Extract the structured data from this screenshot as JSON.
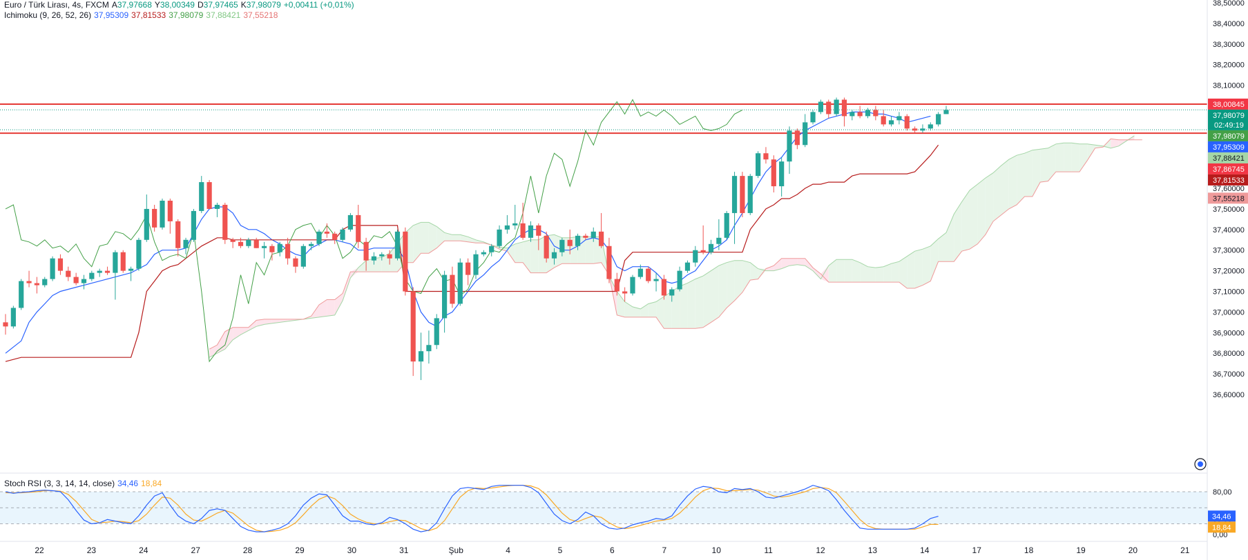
{
  "header": {
    "symbol": "Euro / Türk Lirası, 4s, FXCM",
    "ohlc": [
      {
        "k": "A",
        "v": "37,97668"
      },
      {
        "k": "Y",
        "v": "38,00349"
      },
      {
        "k": "D",
        "v": "37,97465"
      },
      {
        "k": "K",
        "v": "37,98079"
      }
    ],
    "change": "+0,00411 (+0,01%)",
    "ichimoku": {
      "label": "Ichimoku (9, 26, 52, 26)",
      "values": [
        {
          "v": "37,95309",
          "color": "#2962ff"
        },
        {
          "v": "37,81533",
          "color": "#b71c1c"
        },
        {
          "v": "37,98079",
          "color": "#43a047"
        },
        {
          "v": "37,88421",
          "color": "#a5d6a7"
        },
        {
          "v": "37,55218",
          "color": "#ef9a9a"
        }
      ]
    }
  },
  "stoch": {
    "label": "Stoch RSI (3, 3, 14, 14, close)",
    "k_value": "34,46",
    "d_value": "18,84"
  },
  "colors": {
    "up": "#26a69a",
    "down": "#ef5350",
    "tenkan": "#2962ff",
    "kijun": "#b71c1c",
    "chikou": "#43a047",
    "senkouA": "#a5d6a7",
    "senkouB": "#ef9a9a",
    "kumoBull": "#e8f5e9",
    "kumoBear": "#fde4ec",
    "hline": "#e53935",
    "stochK": "#2962ff",
    "stochD": "#f9a825"
  },
  "price_axis": {
    "ticks": [
      "38,50000",
      "38,40000",
      "38,30000",
      "38,20000",
      "38,10000",
      "38,00000",
      "37,90000",
      "37,80000",
      "37,70000",
      "37,60000",
      "37,50000",
      "37,40000",
      "37,30000",
      "37,20000",
      "37,10000",
      "37,00000",
      "36,90000",
      "36,80000",
      "36,70000",
      "36,60000"
    ],
    "labels": [
      {
        "value": 38.00845,
        "text": "38,00845",
        "bg": "#f23645",
        "fg": "#ffffff"
      },
      {
        "value": 37.98079,
        "text": "37,98079",
        "bg": "#089981",
        "fg": "#ffffff",
        "sub": "02:49:19"
      },
      {
        "value": 37.98079,
        "text": "37,98079",
        "bg": "#43a047",
        "fg": "#ffffff",
        "offset": 1
      },
      {
        "value": 37.95309,
        "text": "37,95309",
        "bg": "#2962ff",
        "fg": "#ffffff"
      },
      {
        "value": 37.88421,
        "text": "37,88421",
        "bg": "#a5d6a7",
        "fg": "#131722"
      },
      {
        "value": 37.86745,
        "text": "37,86745",
        "bg": "#f23645",
        "fg": "#ffffff"
      },
      {
        "value": 37.81533,
        "text": "37,81533",
        "bg": "#b71c1c",
        "fg": "#ffffff"
      },
      {
        "value": 37.55218,
        "text": "37,55218",
        "bg": "#ef9a9a",
        "fg": "#131722"
      }
    ]
  },
  "stoch_axis": {
    "ticks": [
      "80,00",
      "20,00",
      "0,00"
    ],
    "labels": [
      {
        "value": 34.46,
        "text": "34,46",
        "bg": "#2962ff",
        "fg": "#ffffff"
      },
      {
        "value": 18.84,
        "text": "18,84",
        "bg": "#f9a825",
        "fg": "#ffffff"
      }
    ]
  },
  "time_axis": [
    "22",
    "23",
    "24",
    "27",
    "28",
    "29",
    "30",
    "31",
    "Şub",
    "4",
    "5",
    "6",
    "7",
    "10",
    "11",
    "12",
    "13",
    "14",
    "17",
    "18",
    "19",
    "20",
    "21"
  ],
  "chart_data": {
    "type": "candlestick",
    "title": "Euro / Türk Lirası, 4s, FXCM",
    "ylim": [
      36.53,
      38.5
    ],
    "horizontal_lines": [
      38.00845,
      37.86745
    ],
    "candles": [
      [
        36.95,
        36.99,
        36.89,
        36.93
      ],
      [
        36.93,
        37.03,
        36.92,
        37.02
      ],
      [
        37.02,
        37.16,
        37.01,
        37.15
      ],
      [
        37.15,
        37.2,
        37.12,
        37.14
      ],
      [
        37.14,
        37.17,
        37.09,
        37.13
      ],
      [
        37.13,
        37.17,
        37.12,
        37.16
      ],
      [
        37.16,
        37.27,
        37.15,
        37.26
      ],
      [
        37.26,
        37.28,
        37.18,
        37.2
      ],
      [
        37.2,
        37.22,
        37.15,
        37.17
      ],
      [
        37.17,
        37.19,
        37.13,
        37.14
      ],
      [
        37.14,
        37.18,
        37.11,
        37.16
      ],
      [
        37.16,
        37.2,
        37.15,
        37.19
      ],
      [
        37.19,
        37.21,
        37.17,
        37.2
      ],
      [
        37.2,
        37.22,
        37.18,
        37.19
      ],
      [
        37.19,
        37.3,
        37.06,
        37.29
      ],
      [
        37.29,
        37.3,
        37.19,
        37.2
      ],
      [
        37.2,
        37.22,
        37.15,
        37.21
      ],
      [
        37.21,
        37.36,
        37.2,
        37.35
      ],
      [
        37.35,
        37.57,
        37.34,
        37.5
      ],
      [
        37.5,
        37.52,
        37.39,
        37.41
      ],
      [
        37.41,
        37.55,
        37.4,
        37.54
      ],
      [
        37.54,
        37.55,
        37.38,
        37.44
      ],
      [
        37.44,
        37.45,
        37.27,
        37.31
      ],
      [
        37.31,
        37.36,
        37.28,
        37.35
      ],
      [
        37.35,
        37.5,
        37.34,
        37.49
      ],
      [
        37.49,
        37.66,
        37.48,
        37.63
      ],
      [
        37.63,
        37.64,
        37.5,
        37.5
      ],
      [
        37.5,
        37.53,
        37.46,
        37.52
      ],
      [
        37.52,
        37.53,
        37.33,
        37.35
      ],
      [
        37.35,
        37.36,
        37.31,
        37.34
      ],
      [
        37.34,
        37.36,
        37.31,
        37.32
      ],
      [
        37.32,
        37.36,
        37.31,
        37.35
      ],
      [
        37.35,
        37.36,
        37.31,
        37.31
      ],
      [
        37.31,
        37.34,
        37.26,
        37.32
      ],
      [
        37.32,
        37.33,
        37.25,
        37.29
      ],
      [
        37.29,
        37.34,
        37.27,
        37.33
      ],
      [
        37.33,
        37.36,
        37.23,
        37.26
      ],
      [
        37.26,
        37.27,
        37.19,
        37.22
      ],
      [
        37.22,
        37.33,
        37.21,
        37.32
      ],
      [
        37.32,
        37.34,
        37.3,
        37.33
      ],
      [
        37.33,
        37.4,
        37.32,
        37.39
      ],
      [
        37.39,
        37.43,
        37.36,
        37.38
      ],
      [
        37.38,
        37.39,
        37.33,
        37.35
      ],
      [
        37.35,
        37.41,
        37.34,
        37.4
      ],
      [
        37.4,
        37.48,
        37.39,
        37.47
      ],
      [
        37.47,
        37.52,
        37.31,
        37.34
      ],
      [
        37.34,
        37.36,
        37.2,
        37.25
      ],
      [
        37.25,
        37.29,
        37.23,
        37.27
      ],
      [
        37.27,
        37.29,
        37.25,
        37.28
      ],
      [
        37.28,
        37.3,
        37.23,
        37.26
      ],
      [
        37.26,
        37.4,
        37.25,
        37.39
      ],
      [
        37.39,
        37.41,
        37.08,
        37.1
      ],
      [
        37.1,
        37.12,
        36.69,
        36.76
      ],
      [
        36.76,
        36.9,
        36.67,
        36.81
      ],
      [
        36.81,
        36.91,
        36.75,
        36.84
      ],
      [
        36.84,
        36.99,
        36.82,
        36.97
      ],
      [
        36.97,
        37.2,
        36.9,
        37.18
      ],
      [
        37.18,
        37.22,
        37.02,
        37.04
      ],
      [
        37.04,
        37.26,
        37.03,
        37.24
      ],
      [
        37.24,
        37.26,
        37.13,
        37.18
      ],
      [
        37.18,
        37.3,
        37.16,
        37.28
      ],
      [
        37.28,
        37.3,
        37.27,
        37.29
      ],
      [
        37.29,
        37.33,
        37.27,
        37.32
      ],
      [
        37.32,
        37.42,
        37.31,
        37.4
      ],
      [
        37.4,
        37.47,
        37.38,
        37.42
      ],
      [
        37.42,
        37.52,
        37.4,
        37.43
      ],
      [
        37.43,
        37.53,
        37.35,
        37.36
      ],
      [
        37.36,
        37.44,
        37.34,
        37.42
      ],
      [
        37.42,
        37.43,
        37.3,
        37.37
      ],
      [
        37.37,
        37.39,
        37.24,
        37.26
      ],
      [
        37.26,
        37.31,
        37.23,
        37.29
      ],
      [
        37.29,
        37.36,
        37.27,
        37.35
      ],
      [
        37.35,
        37.4,
        37.28,
        37.32
      ],
      [
        37.32,
        37.38,
        37.3,
        37.37
      ],
      [
        37.37,
        37.38,
        37.35,
        37.36
      ],
      [
        37.36,
        37.41,
        37.34,
        37.39
      ],
      [
        37.39,
        37.48,
        37.31,
        37.32
      ],
      [
        37.32,
        37.36,
        37.14,
        37.16
      ],
      [
        37.16,
        37.19,
        37.08,
        37.1
      ],
      [
        37.1,
        37.12,
        37.05,
        37.09
      ],
      [
        37.09,
        37.18,
        37.08,
        37.17
      ],
      [
        37.17,
        37.23,
        37.16,
        37.21
      ],
      [
        37.21,
        37.22,
        37.14,
        37.15
      ],
      [
        37.15,
        37.19,
        37.1,
        37.16
      ],
      [
        37.16,
        37.18,
        37.06,
        37.08
      ],
      [
        37.08,
        37.12,
        37.05,
        37.11
      ],
      [
        37.11,
        37.22,
        37.1,
        37.2
      ],
      [
        37.2,
        37.25,
        37.19,
        37.24
      ],
      [
        37.24,
        37.32,
        37.22,
        37.3
      ],
      [
        37.3,
        37.42,
        37.28,
        37.29
      ],
      [
        37.29,
        37.35,
        37.28,
        37.33
      ],
      [
        37.33,
        37.45,
        37.3,
        37.36
      ],
      [
        37.36,
        37.49,
        37.35,
        37.48
      ],
      [
        37.48,
        37.68,
        37.33,
        37.66
      ],
      [
        37.66,
        37.68,
        37.46,
        37.48
      ],
      [
        37.48,
        37.67,
        37.47,
        37.66
      ],
      [
        37.66,
        37.78,
        37.65,
        37.77
      ],
      [
        37.77,
        37.8,
        37.72,
        37.74
      ],
      [
        37.74,
        37.76,
        37.58,
        37.61
      ],
      [
        37.61,
        37.75,
        37.56,
        37.73
      ],
      [
        37.73,
        37.9,
        37.67,
        37.88
      ],
      [
        37.88,
        37.89,
        37.79,
        37.81
      ],
      [
        37.81,
        37.96,
        37.8,
        37.92
      ],
      [
        37.92,
        37.98,
        37.91,
        37.97
      ],
      [
        37.97,
        38.03,
        37.96,
        38.02
      ],
      [
        38.02,
        38.03,
        37.94,
        37.96
      ],
      [
        37.96,
        38.04,
        37.95,
        38.03
      ],
      [
        38.03,
        38.04,
        37.9,
        37.95
      ],
      [
        37.95,
        37.98,
        37.93,
        37.97
      ],
      [
        37.97,
        38.0,
        37.94,
        37.95
      ],
      [
        37.95,
        37.99,
        37.94,
        37.98
      ],
      [
        37.98,
        38.0,
        37.93,
        37.95
      ],
      [
        37.95,
        37.98,
        37.9,
        37.91
      ],
      [
        37.91,
        37.95,
        37.9,
        37.93
      ],
      [
        37.93,
        37.97,
        37.91,
        37.95
      ],
      [
        37.95,
        37.96,
        37.88,
        37.89
      ],
      [
        37.89,
        37.9,
        37.87,
        37.88
      ],
      [
        37.88,
        37.91,
        37.87,
        37.89
      ],
      [
        37.89,
        37.92,
        37.88,
        37.91
      ],
      [
        37.91,
        37.97,
        37.9,
        37.96
      ],
      [
        37.96,
        38.0,
        37.96,
        37.98
      ]
    ],
    "tenkan": [
      36.8,
      36.83,
      36.86,
      36.95,
      37.0,
      37.04,
      37.08,
      37.1,
      37.11,
      37.12,
      37.13,
      37.14,
      37.15,
      37.16,
      37.17,
      37.18,
      37.19,
      37.21,
      37.23,
      37.28,
      37.3,
      37.3,
      37.3,
      37.31,
      37.38,
      37.45,
      37.5,
      37.51,
      37.51,
      37.48,
      37.42,
      37.4,
      37.4,
      37.38,
      37.35,
      37.33,
      37.3,
      37.28,
      37.27,
      37.31,
      37.33,
      37.35,
      37.35,
      37.34,
      37.33,
      37.3,
      37.3,
      37.31,
      37.31,
      37.31,
      37.31,
      37.25,
      37.1,
      37.0,
      36.95,
      36.93,
      36.98,
      37.0,
      37.05,
      37.1,
      37.15,
      37.18,
      37.22,
      37.25,
      37.3,
      37.35,
      37.38,
      37.4,
      37.4,
      37.38,
      37.32,
      37.3,
      37.3,
      37.32,
      37.35,
      37.36,
      37.35,
      37.3,
      37.22,
      37.2,
      37.22,
      37.22,
      37.22,
      37.19,
      37.15,
      37.14,
      37.15,
      37.18,
      37.2,
      37.25,
      37.3,
      37.32,
      37.35,
      37.42,
      37.48,
      37.55,
      37.62,
      37.68,
      37.72,
      37.75,
      37.8,
      37.85,
      37.88,
      37.9,
      37.92,
      37.94,
      37.95,
      37.96,
      37.97,
      37.97,
      37.97,
      37.96,
      37.96,
      37.95,
      37.94,
      37.92,
      37.93,
      37.94,
      37.95
    ],
    "kijun": [
      36.76,
      36.77,
      36.78,
      36.78,
      36.78,
      36.78,
      36.78,
      36.78,
      36.78,
      36.78,
      36.78,
      36.78,
      36.78,
      36.78,
      36.78,
      36.78,
      36.78,
      36.9,
      37.1,
      37.15,
      37.2,
      37.22,
      37.23,
      37.26,
      37.29,
      37.32,
      37.34,
      37.36,
      37.36,
      37.35,
      37.35,
      37.35,
      37.35,
      37.35,
      37.35,
      37.35,
      37.35,
      37.35,
      37.35,
      37.35,
      37.35,
      37.35,
      37.35,
      37.4,
      37.42,
      37.42,
      37.42,
      37.42,
      37.42,
      37.42,
      37.42,
      37.1,
      37.1,
      37.1,
      37.1,
      37.1,
      37.1,
      37.1,
      37.1,
      37.1,
      37.1,
      37.1,
      37.1,
      37.1,
      37.1,
      37.1,
      37.1,
      37.1,
      37.1,
      37.1,
      37.1,
      37.1,
      37.1,
      37.1,
      37.1,
      37.1,
      37.1,
      37.1,
      37.1,
      37.25,
      37.29,
      37.29,
      37.29,
      37.29,
      37.29,
      37.29,
      37.29,
      37.29,
      37.29,
      37.29,
      37.29,
      37.29,
      37.29,
      37.29,
      37.29,
      37.4,
      37.45,
      37.5,
      37.52,
      37.55,
      37.55,
      37.57,
      37.6,
      37.62,
      37.62,
      37.63,
      37.63,
      37.63,
      37.66,
      37.67,
      37.67,
      37.67,
      37.67,
      37.67,
      37.67,
      37.67,
      37.68,
      37.72,
      37.76,
      37.81
    ]
  },
  "stoch_data": {
    "k": [
      80,
      77,
      79,
      80,
      82,
      83,
      82,
      80,
      65,
      45,
      27,
      20,
      22,
      28,
      25,
      22,
      20,
      35,
      55,
      72,
      78,
      55,
      35,
      25,
      20,
      30,
      45,
      48,
      45,
      30,
      15,
      8,
      5,
      5,
      8,
      12,
      20,
      35,
      55,
      68,
      76,
      74,
      55,
      35,
      25,
      25,
      20,
      18,
      22,
      32,
      28,
      20,
      10,
      5,
      8,
      22,
      48,
      72,
      86,
      88,
      86,
      84,
      90,
      92,
      92,
      92,
      92,
      88,
      78,
      58,
      38,
      26,
      20,
      28,
      42,
      35,
      20,
      12,
      10,
      12,
      18,
      22,
      25,
      30,
      28,
      35,
      55,
      72,
      85,
      90,
      88,
      80,
      78,
      86,
      84,
      86,
      80,
      70,
      68,
      72,
      76,
      80,
      85,
      92,
      88,
      82,
      65,
      45,
      28,
      12,
      10,
      10,
      10,
      10,
      10,
      10,
      12,
      20,
      30,
      34
    ],
    "d": [
      78,
      78,
      78,
      79,
      80,
      82,
      82,
      81,
      75,
      62,
      45,
      28,
      22,
      23,
      25,
      24,
      22,
      26,
      38,
      55,
      70,
      68,
      55,
      38,
      27,
      25,
      32,
      40,
      45,
      40,
      28,
      16,
      8,
      5,
      6,
      8,
      13,
      22,
      37,
      53,
      66,
      72,
      67,
      54,
      38,
      29,
      23,
      20,
      20,
      24,
      27,
      26,
      19,
      11,
      7,
      12,
      26,
      48,
      70,
      82,
      87,
      86,
      87,
      89,
      91,
      92,
      92,
      91,
      86,
      74,
      57,
      40,
      28,
      24,
      30,
      35,
      32,
      22,
      14,
      11,
      13,
      17,
      21,
      25,
      27,
      30,
      40,
      54,
      70,
      82,
      87,
      86,
      82,
      82,
      83,
      84,
      83,
      78,
      72,
      70,
      72,
      76,
      80,
      86,
      88,
      86,
      78,
      62,
      45,
      28,
      16,
      11,
      10,
      10,
      10,
      10,
      10,
      14,
      19,
      18.84
    ]
  }
}
